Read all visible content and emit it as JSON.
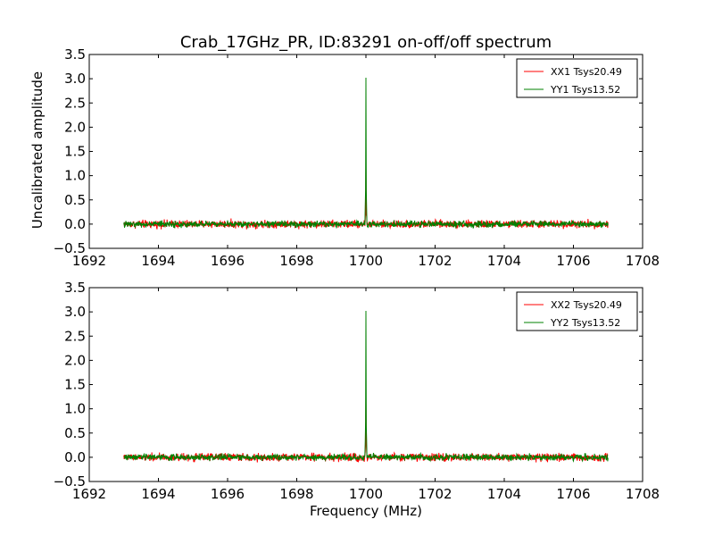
{
  "chart_data": [
    {
      "type": "line",
      "title": "Crab_17GHz_PR, ID:83291 on-off/off spectrum",
      "xlabel": "",
      "ylabel": "Uncalibrated amplitude",
      "xlim": [
        1692,
        1708
      ],
      "ylim": [
        -0.5,
        3.5
      ],
      "xticks": [
        "1692",
        "1694",
        "1696",
        "1698",
        "1700",
        "1702",
        "1704",
        "1706",
        "1708"
      ],
      "yticks": [
        "−0.5",
        "0.0",
        "0.5",
        "1.0",
        "1.5",
        "2.0",
        "2.5",
        "3.0",
        "3.5"
      ],
      "x_range": [
        1693,
        1707
      ],
      "grid": false,
      "legend": "top-right",
      "series": [
        {
          "name": "XX1 Tsys20.49",
          "color": "#ff0000",
          "baseline": 0.0,
          "noise": 0.05,
          "peak_x": 1700.0,
          "peak_y": 1.2
        },
        {
          "name": "YY1 Tsys13.52",
          "color": "#008000",
          "baseline": 0.0,
          "noise": 0.04,
          "peak_x": 1700.0,
          "peak_y": 3.02
        }
      ]
    },
    {
      "type": "line",
      "title": "",
      "xlabel": "Frequency (MHz)",
      "ylabel": "",
      "xlim": [
        1692,
        1708
      ],
      "ylim": [
        -0.5,
        3.5
      ],
      "xticks": [
        "1692",
        "1694",
        "1696",
        "1698",
        "1700",
        "1702",
        "1704",
        "1706",
        "1708"
      ],
      "yticks": [
        "−0.5",
        "0.0",
        "0.5",
        "1.0",
        "1.5",
        "2.0",
        "2.5",
        "3.0",
        "3.5"
      ],
      "x_range": [
        1693,
        1707
      ],
      "grid": false,
      "legend": "top-right",
      "series": [
        {
          "name": "XX2 Tsys20.49",
          "color": "#ff0000",
          "baseline": 0.0,
          "noise": 0.05,
          "peak_x": 1700.0,
          "peak_y": 1.2
        },
        {
          "name": "YY2 Tsys13.52",
          "color": "#008000",
          "baseline": 0.0,
          "noise": 0.04,
          "peak_x": 1700.0,
          "peak_y": 3.02
        }
      ]
    }
  ]
}
